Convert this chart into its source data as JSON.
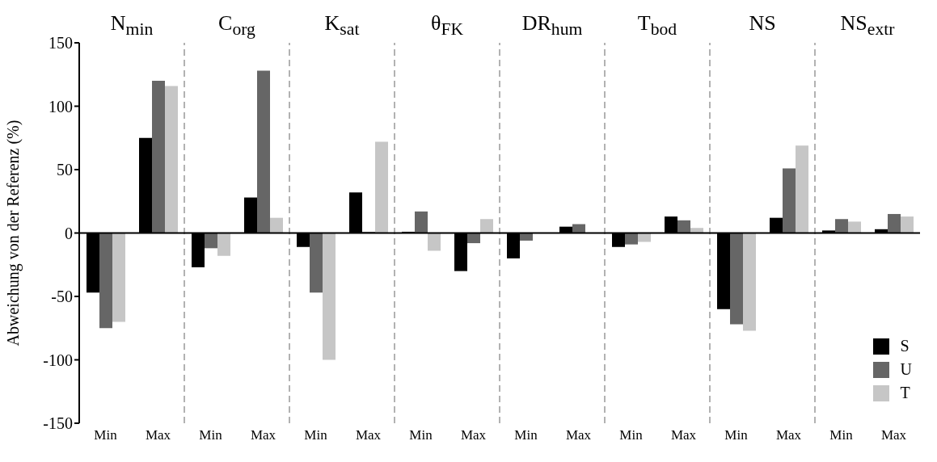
{
  "chart_data": {
    "type": "bar",
    "ylabel": "Abweichung von der Referenz (%)",
    "categories": [
      "Min",
      "Max",
      "Min",
      "Max",
      "Min",
      "Max",
      "Min",
      "Max",
      "Min",
      "Max",
      "Min",
      "Max",
      "Min",
      "Max",
      "Min",
      "Max"
    ],
    "series": [
      {
        "name": "S",
        "color": "#000000",
        "values": [
          -47,
          75,
          -27,
          28,
          -11,
          32,
          1,
          -30,
          -20,
          5,
          -11,
          13,
          -60,
          12,
          2,
          3
        ]
      },
      {
        "name": "U",
        "color": "#666666",
        "values": [
          -75,
          120,
          -12,
          128,
          -47,
          1,
          17,
          -8,
          -6,
          7,
          -9,
          10,
          -72,
          51,
          11,
          15
        ]
      },
      {
        "name": "T",
        "color": "#c6c6c6",
        "values": [
          -70,
          116,
          -18,
          12,
          -100,
          72,
          -14,
          11,
          null,
          null,
          -7,
          4,
          -77,
          69,
          9,
          13
        ]
      }
    ],
    "annotations": [
      "N$_{min}$",
      "C$_{org}$",
      "K$_{sat}$",
      "θ$_{FK}$",
      "DR$_{hum}$",
      "T$_{bod}$",
      "NS",
      "NS$_{extr}$"
    ],
    "ylim": [
      -150,
      150
    ],
    "yticks": [
      -150,
      -100,
      -50,
      0,
      50,
      100,
      150
    ],
    "grid": false,
    "legend": "bottom right"
  }
}
